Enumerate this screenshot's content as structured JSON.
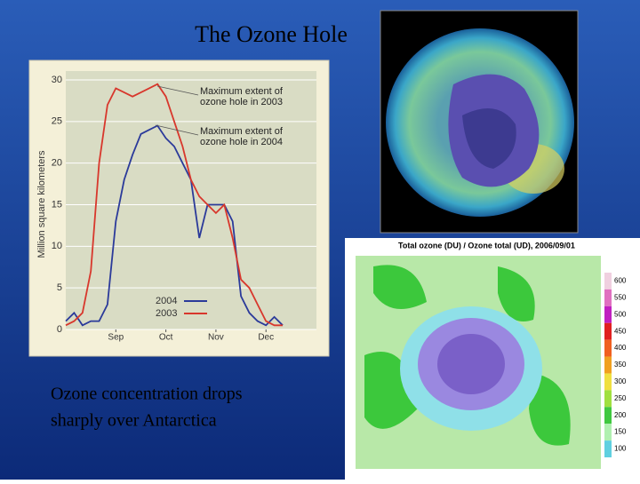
{
  "slide": {
    "title": "The Ozone Hole",
    "caption": [
      "Ozone concentration drops",
      "sharply over Antarctica"
    ]
  },
  "chart_data": {
    "type": "line",
    "ylabel": "Million square kilometers",
    "categories": [
      null,
      null,
      null,
      null,
      null,
      null,
      "Sep",
      null,
      null,
      null,
      null,
      null,
      "Oct",
      null,
      null,
      null,
      null,
      null,
      "Nov",
      null,
      null,
      null,
      null,
      null,
      "Dec",
      null,
      null
    ],
    "series": [
      {
        "name": "2004",
        "color": "#2b3a9a",
        "values": [
          1,
          2,
          0.5,
          1,
          1,
          3,
          13,
          18,
          21,
          23.5,
          24,
          24.5,
          23,
          22,
          20,
          18,
          11,
          15,
          15,
          15,
          13,
          4,
          2,
          1,
          0.5,
          1.5,
          0.5
        ]
      },
      {
        "name": "2003",
        "color": "#d8372c",
        "values": [
          0.5,
          1,
          2,
          7,
          20,
          27,
          29,
          28.5,
          28,
          28.5,
          29,
          29.5,
          28,
          25,
          22,
          18,
          16,
          15,
          14,
          15,
          11,
          6,
          5,
          3,
          1,
          0.5,
          0.5
        ]
      }
    ],
    "ylim": [
      0,
      30
    ],
    "yticks": [
      0,
      5,
      10,
      15,
      20,
      25,
      30
    ],
    "grid": true,
    "legend": "lower-right",
    "annotations": [
      [
        "Maximum extent of",
        "ozone hole in 2003"
      ],
      [
        "Maximum extent of",
        "ozone hole in 2004"
      ]
    ]
  },
  "map": {
    "title": "Total ozone (DU) / Ozone total (UD), 2006/09/01",
    "colorbar": [
      600,
      550,
      500,
      450,
      400,
      350,
      300,
      250,
      200,
      150,
      100
    ]
  }
}
